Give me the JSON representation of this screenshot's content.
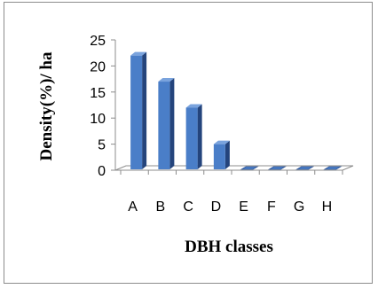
{
  "chart_data": {
    "type": "bar",
    "title": "",
    "xlabel": "DBH classes",
    "ylabel": "Density(%)/ ha",
    "categories": [
      "A",
      "B",
      "C",
      "D",
      "E",
      "F",
      "G",
      "H"
    ],
    "values": [
      22,
      17,
      12,
      5,
      0,
      0,
      0,
      0
    ],
    "ylim": [
      0,
      25
    ],
    "yticks": [
      "0",
      "5",
      "10",
      "15",
      "20",
      "25"
    ],
    "grid": false,
    "legend": "none",
    "style": "3d-column",
    "bar_color": "#4a7ec8"
  }
}
